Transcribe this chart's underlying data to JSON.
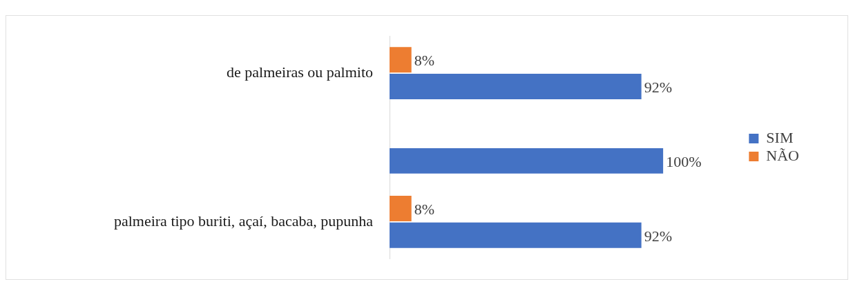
{
  "chart_data": {
    "type": "bar",
    "orientation": "horizontal",
    "categories": [
      "de palmeiras ou palmito",
      null,
      "palmeira tipo buriti, açaí, bacaba, pupunha"
    ],
    "series": [
      {
        "name": "NÃO",
        "color": "#ed7d31",
        "values": [
          8,
          null,
          8
        ],
        "value_labels": [
          "8%",
          null,
          "8%"
        ]
      },
      {
        "name": "SIM",
        "color": "#4472c4",
        "values": [
          92,
          100,
          92
        ],
        "value_labels": [
          "92%",
          "100%",
          "92%"
        ]
      }
    ],
    "xlim": [
      0,
      100
    ],
    "tick_labels": "y",
    "legend": "right"
  }
}
